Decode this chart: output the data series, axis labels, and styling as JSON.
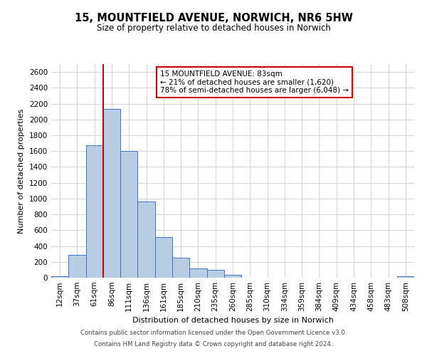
{
  "title_line1": "15, MOUNTFIELD AVENUE, NORWICH, NR6 5HW",
  "title_line2": "Size of property relative to detached houses in Norwich",
  "xlabel": "Distribution of detached houses by size in Norwich",
  "ylabel": "Number of detached properties",
  "bin_labels": [
    "12sqm",
    "37sqm",
    "61sqm",
    "86sqm",
    "111sqm",
    "136sqm",
    "161sqm",
    "185sqm",
    "210sqm",
    "235sqm",
    "260sqm",
    "285sqm",
    "310sqm",
    "334sqm",
    "359sqm",
    "384sqm",
    "409sqm",
    "434sqm",
    "458sqm",
    "483sqm",
    "508sqm"
  ],
  "bar_values": [
    20,
    290,
    1670,
    2130,
    1600,
    960,
    510,
    255,
    120,
    95,
    35,
    0,
    0,
    0,
    0,
    0,
    0,
    0,
    0,
    0,
    20
  ],
  "bar_color": "#b8cce4",
  "bar_edge_color": "#4472c4",
  "red_line_index": 3,
  "annotation_title": "15 MOUNTFIELD AVENUE: 83sqm",
  "annotation_line1": "← 21% of detached houses are smaller (1,620)",
  "annotation_line2": "78% of semi-detached houses are larger (6,048) →",
  "annotation_box_color": "#ffffff",
  "annotation_box_edge": "#cc0000",
  "red_line_color": "#cc0000",
  "ylim": [
    0,
    2700
  ],
  "yticks": [
    0,
    200,
    400,
    600,
    800,
    1000,
    1200,
    1400,
    1600,
    1800,
    2000,
    2200,
    2400,
    2600
  ],
  "footer_line1": "Contains HM Land Registry data © Crown copyright and database right 2024.",
  "footer_line2": "Contains public sector information licensed under the Open Government Licence v3.0.",
  "background_color": "#ffffff",
  "grid_color": "#cccccc"
}
